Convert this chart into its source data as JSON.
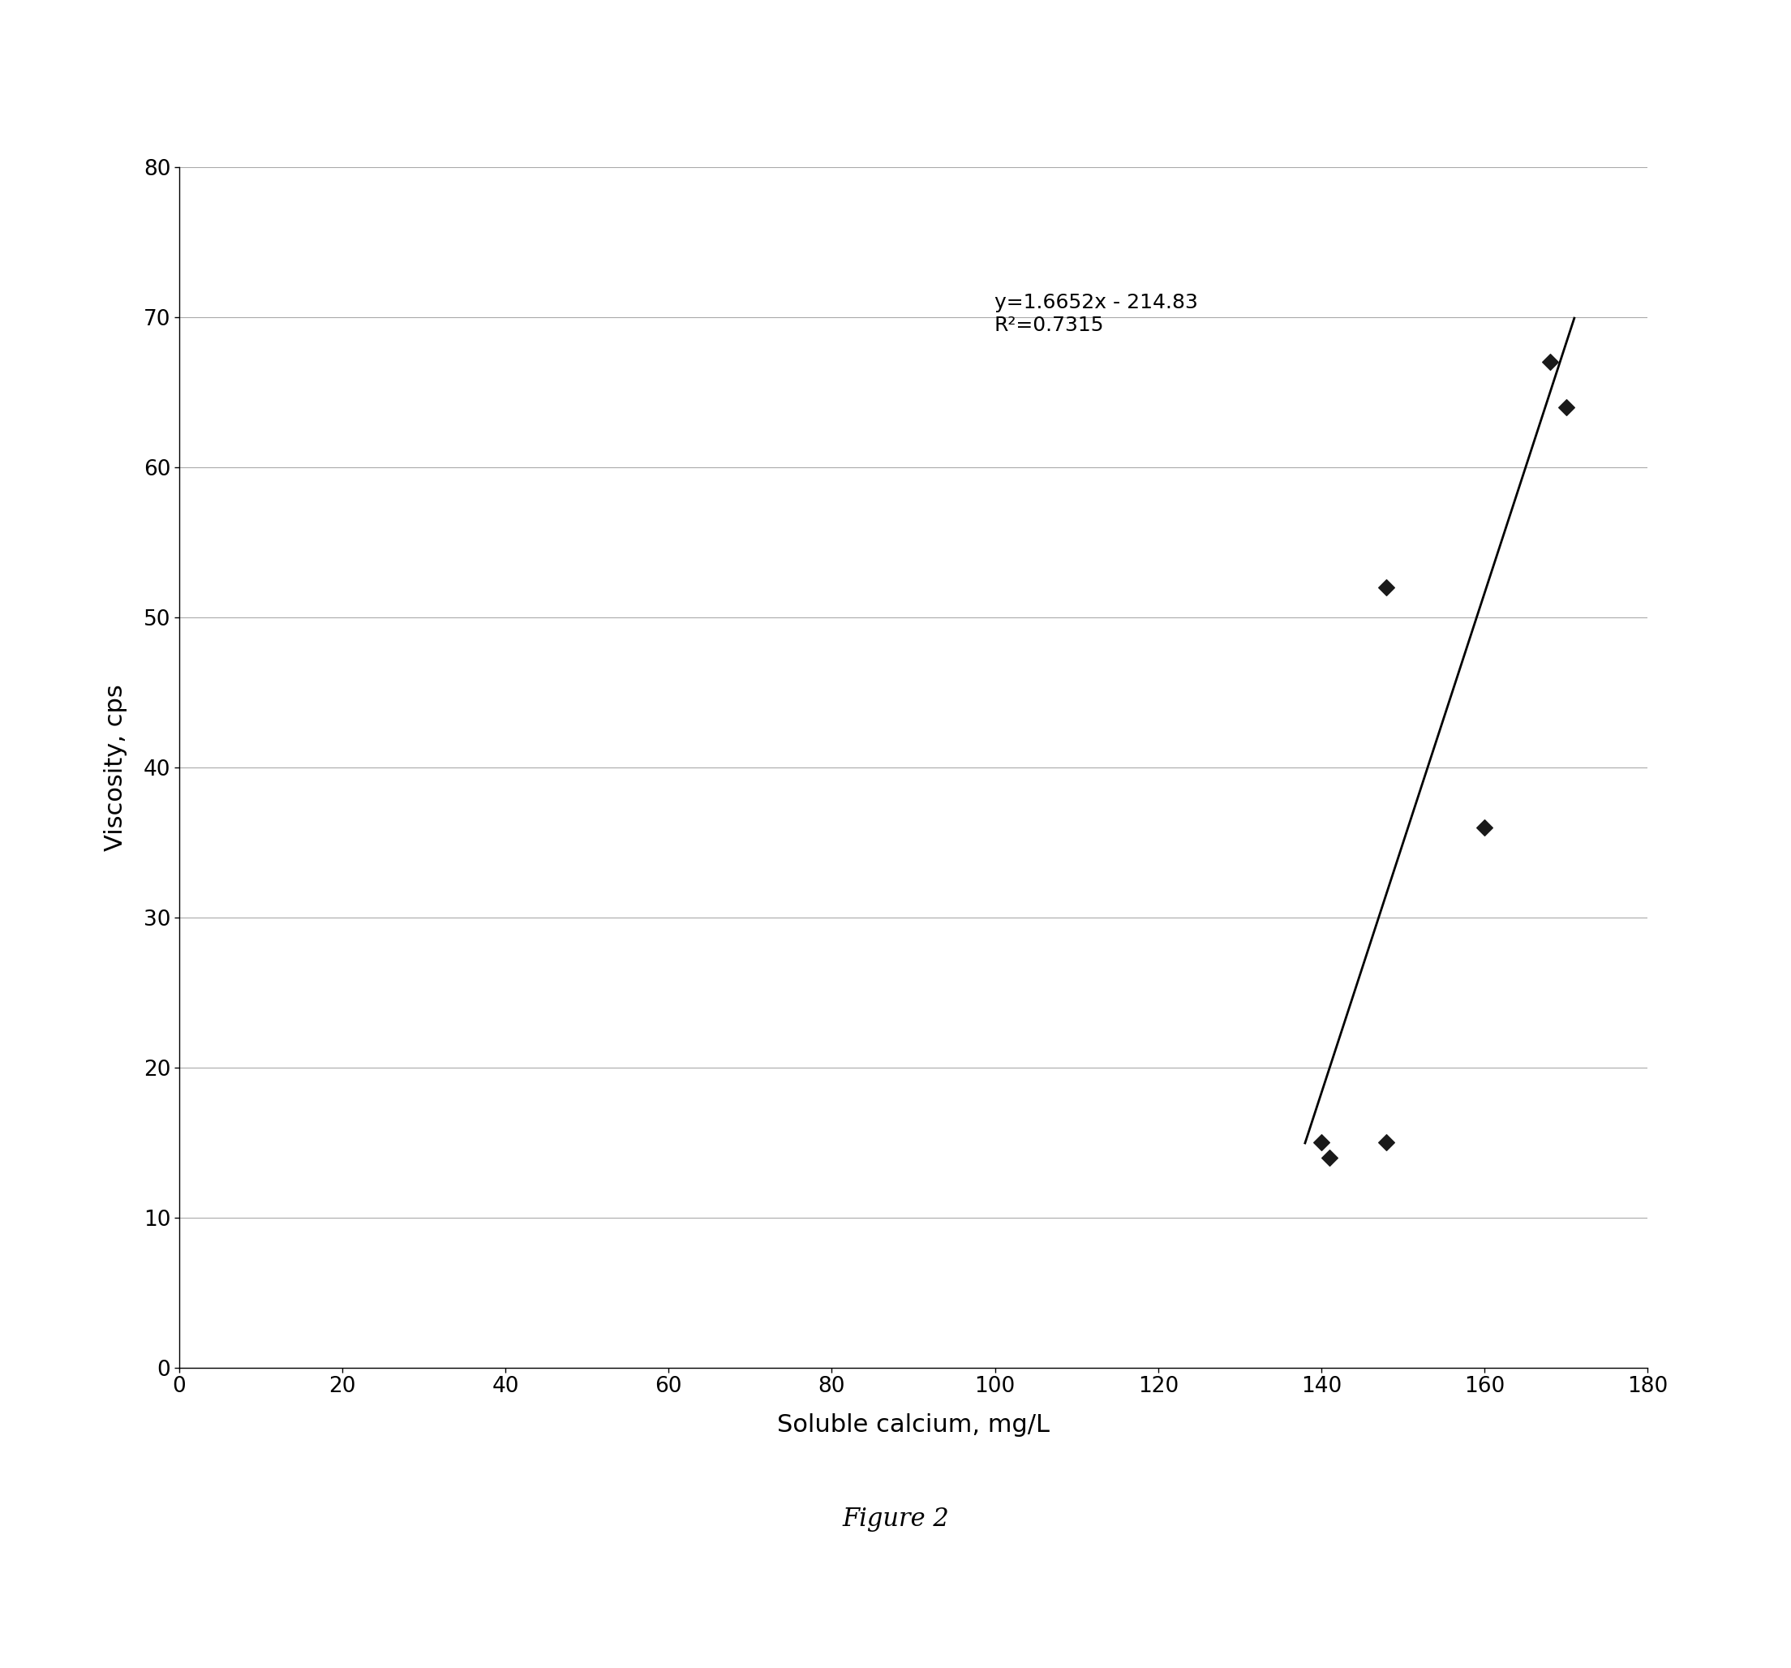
{
  "scatter_x": [
    140,
    141,
    148,
    148,
    160,
    168,
    170
  ],
  "scatter_y": [
    15,
    14,
    52,
    15,
    36,
    67,
    64
  ],
  "trendline_slope": 1.6652,
  "trendline_intercept": -214.83,
  "trendline_x_start": 138,
  "trendline_x_end": 171,
  "equation_text": "y=1.6652x - 214.83",
  "r2_text": "R²=0.7315",
  "xlabel": "Soluble calcium, mg/L",
  "ylabel": "Viscosity, cps",
  "caption": "Figure 2",
  "xlim": [
    0,
    180
  ],
  "ylim": [
    0,
    80
  ],
  "xticks": [
    0,
    20,
    40,
    60,
    80,
    100,
    120,
    140,
    160,
    180
  ],
  "yticks": [
    0,
    10,
    20,
    30,
    40,
    50,
    60,
    70,
    80
  ],
  "background_color": "#ffffff",
  "scatter_color": "#1a1a1a",
  "line_color": "#000000",
  "grid_color": "#aaaaaa"
}
